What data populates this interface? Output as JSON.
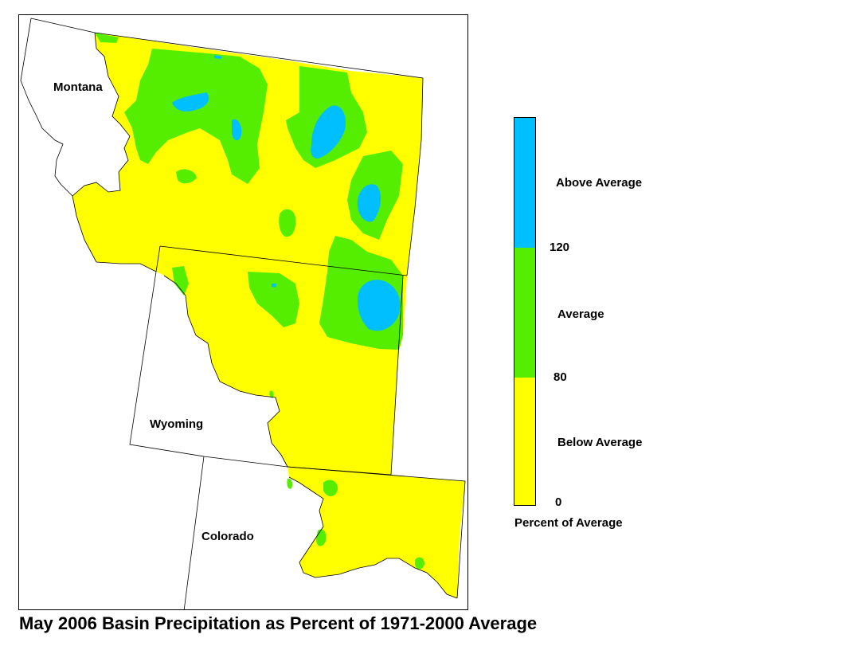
{
  "title": "May 2006 Basin Precipitation as Percent of 1971-2000 Average",
  "states": {
    "montana": "Montana",
    "wyoming": "Wyoming",
    "colorado": "Colorado"
  },
  "legend": {
    "categories": [
      {
        "label": "Above Average",
        "color": "#00bfff"
      },
      {
        "label": "Average",
        "color": "#55ee00"
      },
      {
        "label": "Below Average",
        "color": "#ffff00"
      }
    ],
    "ticks": [
      "120",
      "80",
      "0"
    ],
    "caption": "Percent of Average"
  }
}
